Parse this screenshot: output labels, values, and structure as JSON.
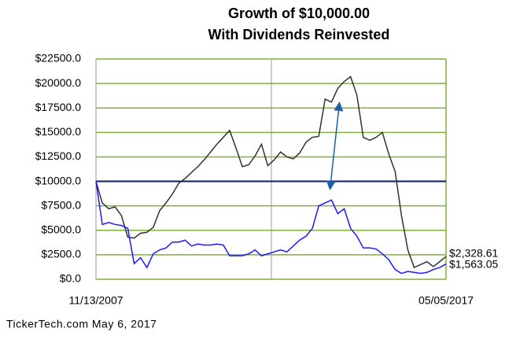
{
  "chart_data": {
    "type": "line",
    "title": "Growth of $10,000.00",
    "subtitle": "With Dividends Reinvested",
    "footer": "TickerTech.com  May 6, 2017",
    "categories": [
      "11/13/2007",
      null,
      null,
      null,
      null,
      null,
      null,
      null,
      null,
      null,
      null,
      null,
      null,
      null,
      null,
      null,
      null,
      null,
      null,
      null,
      null,
      null,
      null,
      null,
      null,
      null,
      null,
      null,
      null,
      null,
      null,
      null,
      null,
      null,
      null,
      null,
      null,
      null,
      null,
      null,
      null,
      null,
      null,
      null,
      null,
      null,
      null,
      null,
      null,
      null,
      null,
      null,
      null,
      null,
      null,
      "05/05/2017"
    ],
    "series": [
      {
        "color": "#333333",
        "end_label": "$2,328.61",
        "values": [
          10000,
          7800,
          7200,
          7400,
          6500,
          4300,
          4200,
          4700,
          4800,
          5300,
          7000,
          7800,
          8700,
          9800,
          10300,
          10900,
          11500,
          12200,
          13000,
          13800,
          14500,
          15200,
          13400,
          11500,
          11700,
          12600,
          13800,
          11600,
          12200,
          13000,
          12500,
          12300,
          12900,
          14000,
          14500,
          14600,
          18400,
          18100,
          19500,
          20200,
          20700,
          18800,
          14500,
          14200,
          14500,
          15000,
          12800,
          11000,
          6500,
          3000,
          1200,
          1500,
          1800,
          1300,
          1800,
          2328.61
        ]
      },
      {
        "color": "#1a1aff",
        "end_label": "$1,563.05",
        "values": [
          10000,
          5600,
          5800,
          5600,
          5500,
          5200,
          1600,
          2200,
          1200,
          2600,
          3000,
          3200,
          3800,
          3800,
          4000,
          3400,
          3600,
          3500,
          3500,
          3600,
          3500,
          2400,
          2400,
          2400,
          2600,
          3000,
          2400,
          2600,
          2800,
          3000,
          2800,
          3400,
          4000,
          4400,
          5200,
          7500,
          7800,
          8100,
          6700,
          7200,
          5200,
          4400,
          3200,
          3200,
          3100,
          2600,
          2000,
          1000,
          600,
          800,
          700,
          600,
          700,
          1000,
          1200,
          1563.05
        ]
      }
    ],
    "reference_line": 10000,
    "ylim": [
      0,
      22500
    ],
    "yticks": [
      {
        "value": 0,
        "label": "$0.0"
      },
      {
        "value": 2500,
        "label": "$2500.0"
      },
      {
        "value": 5000,
        "label": "$5000.0"
      },
      {
        "value": 7500,
        "label": "$7500.0"
      },
      {
        "value": 10000,
        "label": "$10000.0"
      },
      {
        "value": 12500,
        "label": "$12500.0"
      },
      {
        "value": 15000,
        "label": "$15000.0"
      },
      {
        "value": 17500,
        "label": "$17500.0"
      },
      {
        "value": 20000,
        "label": "$20000.0"
      },
      {
        "value": 22500,
        "label": "$22500.0"
      }
    ],
    "grid": true,
    "grid_color": "#7fb23a"
  }
}
